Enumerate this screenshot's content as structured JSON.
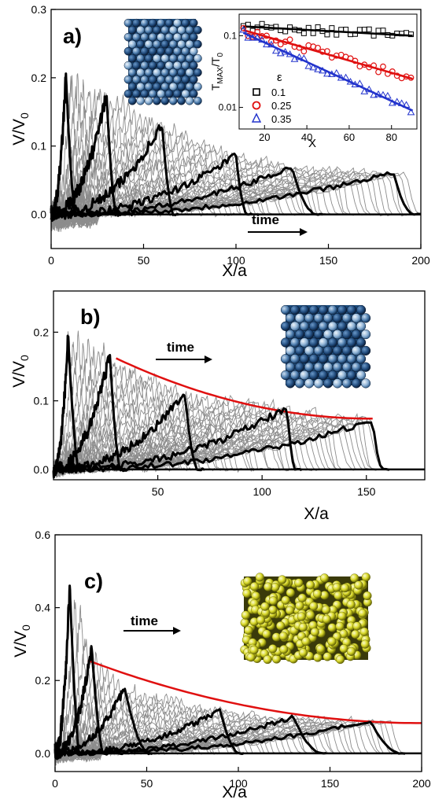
{
  "chart_data": [
    {
      "type": "line",
      "panel_label": "a)",
      "xlabel": "X/a",
      "ylabel": "V/V0",
      "xlim": [
        0,
        200
      ],
      "ylim": [
        -0.05,
        0.3
      ],
      "xticks": [
        0,
        50,
        100,
        150,
        200
      ],
      "yticks": [
        0.0,
        0.1,
        0.2,
        0.3
      ],
      "annotation": "time",
      "grid": false,
      "black_pulses": [
        {
          "peak_x": 8,
          "peak_y": 0.205,
          "end_x": 13
        },
        {
          "peak_x": 30,
          "peak_y": 0.175,
          "end_x": 35
        },
        {
          "peak_x": 60,
          "peak_y": 0.132,
          "end_x": 66
        },
        {
          "peak_x": 100,
          "peak_y": 0.087,
          "end_x": 106
        },
        {
          "peak_x": 130,
          "peak_y": 0.07,
          "end_x": 144
        },
        {
          "peak_x": 185,
          "peak_y": 0.062,
          "end_x": 197
        }
      ],
      "envelope": null,
      "inset": {
        "type": "scatter",
        "ylabel": "TMAX/T0",
        "xlabel": "X",
        "xlim": [
          8,
          92
        ],
        "ylog": true,
        "ylim": [
          0.005,
          0.2
        ],
        "xticks": [
          20,
          40,
          60,
          80
        ],
        "yticks": [
          0.01,
          0.1
        ],
        "ytick_labels": [
          "0.01",
          "0.1"
        ],
        "legend_title": "ε",
        "legend_position": "left",
        "series": [
          {
            "name": "0.1",
            "color": "#000000",
            "marker": "square",
            "fit_start": 0.135,
            "fit_end": 0.1
          },
          {
            "name": "0.25",
            "color": "#e01010",
            "marker": "circle",
            "fit_start": 0.12,
            "fit_end": 0.025
          },
          {
            "name": "0.35",
            "color": "#2233cc",
            "marker": "triangle",
            "fit_start": 0.11,
            "fit_end": 0.009
          }
        ]
      }
    },
    {
      "type": "line",
      "panel_label": "b)",
      "xlabel": "X/a",
      "ylabel": "V/V0",
      "xlim": [
        0,
        178
      ],
      "ylim": [
        -0.015,
        0.26
      ],
      "xticks": [
        50,
        100,
        150
      ],
      "yticks": [
        0.0,
        0.1,
        0.2
      ],
      "annotation": "time",
      "grid": false,
      "black_pulses": [
        {
          "peak_x": 7,
          "peak_y": 0.197,
          "end_x": 12
        },
        {
          "peak_x": 27,
          "peak_y": 0.168,
          "end_x": 32
        },
        {
          "peak_x": 63,
          "peak_y": 0.11,
          "end_x": 69
        },
        {
          "peak_x": 112,
          "peak_y": 0.09,
          "end_x": 116
        },
        {
          "peak_x": 153,
          "peak_y": 0.072,
          "end_x": 158
        }
      ],
      "envelope": {
        "color": "#e01010",
        "x_start": 30,
        "y_start": 0.162,
        "x_end": 153,
        "y_end": 0.074
      }
    },
    {
      "type": "line",
      "panel_label": "c)",
      "xlabel": "X/a",
      "ylabel": "V/V0",
      "xlim": [
        0,
        200
      ],
      "ylim": [
        -0.05,
        0.6
      ],
      "xticks": [
        0,
        50,
        100,
        150,
        200
      ],
      "yticks": [
        0.0,
        0.2,
        0.4,
        0.6
      ],
      "annotation": "time",
      "grid": false,
      "black_pulses": [
        {
          "peak_x": 8,
          "peak_y": 0.465,
          "end_x": 13
        },
        {
          "peak_x": 20,
          "peak_y": 0.29,
          "end_x": 26
        },
        {
          "peak_x": 38,
          "peak_y": 0.18,
          "end_x": 50
        },
        {
          "peak_x": 90,
          "peak_y": 0.12,
          "end_x": 100
        },
        {
          "peak_x": 130,
          "peak_y": 0.1,
          "end_x": 145
        },
        {
          "peak_x": 172,
          "peak_y": 0.09,
          "end_x": 188
        }
      ],
      "envelope": {
        "color": "#e01010",
        "x_start": 18,
        "y_start": 0.255,
        "x_end": 200,
        "y_end": 0.083
      }
    }
  ]
}
